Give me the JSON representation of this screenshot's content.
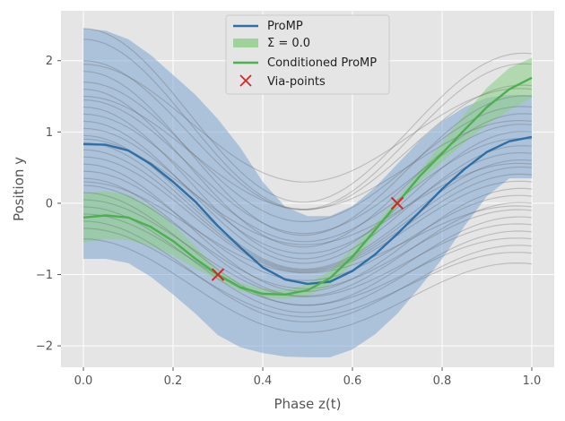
{
  "chart_data": {
    "type": "line",
    "xlabel": "Phase z(t)",
    "ylabel": "Position y",
    "xlim": [
      -0.05,
      1.05
    ],
    "ylim": [
      -2.3,
      2.7
    ],
    "grid": true,
    "legend_position": "top-center",
    "x_ticks": [
      {
        "value": 0.0,
        "label": "0.0"
      },
      {
        "value": 0.2,
        "label": "0.2"
      },
      {
        "value": 0.4,
        "label": "0.4"
      },
      {
        "value": 0.6,
        "label": "0.6"
      },
      {
        "value": 0.8,
        "label": "0.8"
      },
      {
        "value": 1.0,
        "label": "1.0"
      }
    ],
    "y_ticks": [
      {
        "value": -2,
        "label": "−2"
      },
      {
        "value": -1,
        "label": "−1"
      },
      {
        "value": 0,
        "label": "0"
      },
      {
        "value": 1,
        "label": "1"
      },
      {
        "value": 2,
        "label": "2"
      }
    ],
    "x": [
      0.0,
      0.05,
      0.1,
      0.15,
      0.2,
      0.25,
      0.3,
      0.35,
      0.4,
      0.45,
      0.5,
      0.55,
      0.6,
      0.65,
      0.7,
      0.75,
      0.8,
      0.85,
      0.9,
      0.95,
      1.0
    ],
    "series": [
      {
        "name": "ProMP",
        "color": "#2f6fa6",
        "values": [
          0.83,
          0.82,
          0.74,
          0.55,
          0.3,
          0.02,
          -0.32,
          -0.62,
          -0.9,
          -1.07,
          -1.13,
          -1.1,
          -0.95,
          -0.72,
          -0.43,
          -0.12,
          0.2,
          0.48,
          0.72,
          0.87,
          0.93
        ],
        "band_lower": [
          -0.78,
          -0.78,
          -0.84,
          -1.03,
          -1.28,
          -1.55,
          -1.85,
          -2.02,
          -2.1,
          -2.15,
          -2.16,
          -2.16,
          -2.05,
          -1.84,
          -1.55,
          -1.18,
          -0.78,
          -0.32,
          0.1,
          0.35,
          0.35
        ],
        "band_upper": [
          2.45,
          2.42,
          2.3,
          2.08,
          1.8,
          1.52,
          1.18,
          0.78,
          0.3,
          -0.05,
          -0.18,
          -0.18,
          -0.04,
          0.22,
          0.55,
          0.88,
          1.15,
          1.35,
          1.48,
          1.52,
          1.52
        ]
      },
      {
        "name": "Conditioned ProMP",
        "color": "#4caf50",
        "values": [
          -0.2,
          -0.17,
          -0.2,
          -0.33,
          -0.53,
          -0.78,
          -1.0,
          -1.18,
          -1.27,
          -1.28,
          -1.22,
          -1.05,
          -0.75,
          -0.38,
          0.0,
          0.38,
          0.7,
          1.03,
          1.35,
          1.6,
          1.76
        ],
        "band_lower": [
          -0.55,
          -0.5,
          -0.52,
          -0.6,
          -0.73,
          -0.92,
          -1.07,
          -1.23,
          -1.32,
          -1.34,
          -1.3,
          -1.15,
          -0.85,
          -0.45,
          -0.04,
          0.3,
          0.58,
          0.85,
          1.1,
          1.3,
          1.48
        ],
        "band_upper": [
          0.14,
          0.17,
          0.12,
          -0.04,
          -0.3,
          -0.6,
          -0.94,
          -1.12,
          -1.2,
          -1.22,
          -1.13,
          -0.95,
          -0.62,
          -0.3,
          0.06,
          0.46,
          0.85,
          1.25,
          1.62,
          1.9,
          2.04
        ]
      }
    ],
    "via_points": [
      {
        "x": 0.3,
        "y": -1.0
      },
      {
        "x": 0.7,
        "y": 0.0
      }
    ],
    "sample_trajectories": [
      {
        "y0": 2.45,
        "amplitude": 1.38
      },
      {
        "y0": 2.3,
        "amplitude": 1.35
      },
      {
        "y0": 2.0,
        "amplitude": 1.18
      },
      {
        "y0": 1.85,
        "amplitude": 1.3
      },
      {
        "y0": 1.7,
        "amplitude": 1.1
      },
      {
        "y0": 1.6,
        "amplitude": 1.25
      },
      {
        "y0": 1.45,
        "amplitude": 1.05
      },
      {
        "y0": 1.35,
        "amplitude": 1.2
      },
      {
        "y0": 1.25,
        "amplitude": 1.0
      },
      {
        "y0": 1.15,
        "amplitude": 1.12
      },
      {
        "y0": 1.05,
        "amplitude": 0.98
      },
      {
        "y0": 0.95,
        "amplitude": 1.05
      },
      {
        "y0": 0.85,
        "amplitude": 1.0
      },
      {
        "y0": 0.75,
        "amplitude": 0.95
      },
      {
        "y0": 0.65,
        "amplitude": 0.9
      },
      {
        "y0": 0.55,
        "amplitude": 1.0
      },
      {
        "y0": 0.45,
        "amplitude": 0.85
      },
      {
        "y0": 0.35,
        "amplitude": 0.92
      },
      {
        "y0": 0.25,
        "amplitude": 0.8
      },
      {
        "y0": 0.15,
        "amplitude": 0.88
      },
      {
        "y0": 0.05,
        "amplitude": 0.75
      },
      {
        "y0": -0.05,
        "amplitude": 0.82
      },
      {
        "y0": -0.15,
        "amplitude": 0.7
      },
      {
        "y0": -0.25,
        "amplitude": 0.78
      },
      {
        "y0": -0.35,
        "amplitude": 0.68
      },
      {
        "y0": -0.5,
        "amplitude": 0.72
      },
      {
        "y0": 1.95,
        "amplitude": 0.92
      },
      {
        "y0": 1.5,
        "amplitude": 0.88
      },
      {
        "y0": 0.9,
        "amplitude": 0.82
      },
      {
        "y0": 0.3,
        "amplitude": 0.7
      }
    ],
    "legend": [
      {
        "label": "ProMP",
        "kind": "line",
        "color": "#2f6fa6"
      },
      {
        "label": "Σ = 0.0",
        "kind": "patch",
        "color": "#9fd19b"
      },
      {
        "label": "Conditioned ProMP",
        "kind": "line",
        "color": "#4caf50"
      },
      {
        "label": "Via-points",
        "kind": "marker",
        "color": "#d62728"
      }
    ],
    "colors": {
      "axes_background": "#e5e5e5",
      "grid": "#ffffff",
      "promp_band": "#7ea6d3",
      "conditioned_band": "#8fcf8a",
      "samples": "#555555",
      "via_marker": "#d62728"
    }
  }
}
